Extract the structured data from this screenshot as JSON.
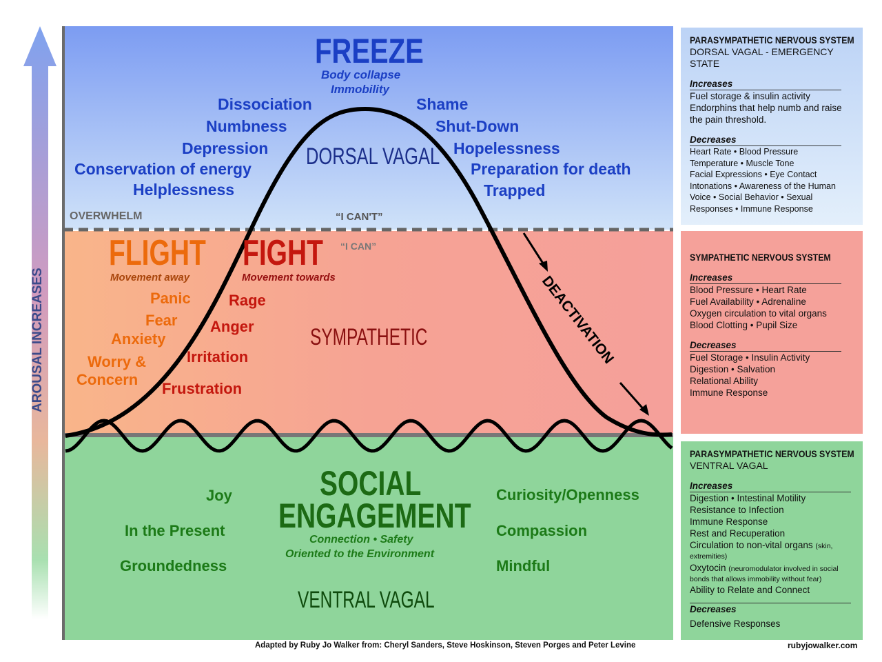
{
  "arousal_label": "AROUSAL INCREASES",
  "freeze": {
    "title": "FREEZE",
    "sub1": "Body collapse",
    "sub2": "Immobility",
    "state": "DORSAL VAGAL",
    "left": [
      "Dissociation",
      "Numbness",
      "Depression",
      "Conservation of energy",
      "Helplessness"
    ],
    "right": [
      "Shame",
      "Shut-Down",
      "Hopelessness",
      "Preparation for death",
      "Trapped"
    ],
    "overwhelm": "OVERWHELM",
    "cant": "“I CAN'T”"
  },
  "sympathetic": {
    "can": "“I CAN”",
    "flight": "FLIGHT",
    "flight_sub": "Movement away",
    "fight": "FIGHT",
    "fight_sub": "Movement towards",
    "flight_items": [
      "Panic",
      "Fear",
      "Anxiety",
      "Worry &",
      "Concern"
    ],
    "fight_items": [
      "Rage",
      "Anger",
      "Irritation",
      "Frustration"
    ],
    "state": "SYMPATHETIC",
    "deactivation": "DEACTIVATION"
  },
  "ventral": {
    "title1": "SOCIAL",
    "title2": "ENGAGEMENT",
    "sub1": "Connection • Safety",
    "sub2": "Oriented to the Environment",
    "state": "VENTRAL VAGAL",
    "left": [
      "Joy",
      "In  the Present",
      "Groundedness"
    ],
    "right": [
      "Curiosity/Openness",
      "Compassion",
      "Mindful"
    ]
  },
  "panels": [
    {
      "title": "PARASYMPATHETIC NERVOUS SYSTEM",
      "subtitle": "DORSAL VAGAL - EMERGENCY STATE",
      "inc_label": "Increases",
      "increases": [
        "Fuel storage & insulin activity",
        "Endorphins that help numb and raise the pain threshold."
      ],
      "dec_label": "Decreases",
      "decreases": [
        "Heart Rate • Blood Pressure",
        "Temperature • Muscle Tone",
        "Facial Expressions • Eye Contact",
        "Intonations • Awareness of the Human Voice • Social Behavior  • Sexual Responses  • Immune Response"
      ],
      "color": "#c9dcf8"
    },
    {
      "title": "SYMPATHETIC NERVOUS SYSTEM",
      "inc_label": "Increases",
      "increases": [
        "Blood Pressure • Heart Rate",
        "Fuel Availability • Adrenaline",
        "Oxygen circulation to vital organs",
        "Blood Clotting • Pupil Size"
      ],
      "dec_label": "Decreases",
      "decreases": [
        "Fuel Storage • Insulin Activity",
        "Digestion • Salvation",
        "Relational Ability",
        "Immune Response"
      ],
      "color": "#f5a19a"
    },
    {
      "title": "PARASYMPATHETIC NERVOUS SYSTEM",
      "subtitle": "VENTRAL VAGAL",
      "inc_label": "Increases",
      "increases": [
        "Digestion • Intestinal Motility",
        "Resistance to Infection",
        "Immune Response",
        "Rest and Recuperation"
      ],
      "circ": "Circulation to non-vital organs",
      "circ_note": "(skin, extremities)",
      "oxy": "Oxytocin",
      "oxy_note": "(neuromodulator involved in social bonds that allows immobility without fear)",
      "ability": "Ability to Relate and Connect",
      "dec_label": "Decreases",
      "decreases": [
        "Defensive Responses"
      ],
      "color": "#8fd59b"
    }
  ],
  "credit": "Adapted by Ruby Jo Walker from: Cheryl Sanders, Steve Hoskinson, Steven Porges and Peter Levine",
  "website": "rubyjowalker.com"
}
